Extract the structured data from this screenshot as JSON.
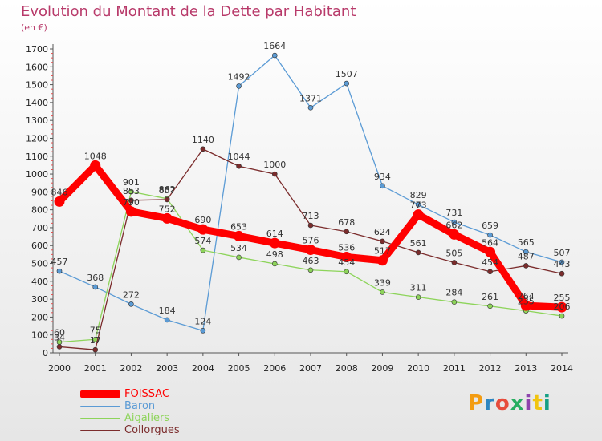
{
  "header": {
    "title": "Evolution du Montant de la Dette par Habitant",
    "unit": "(en €)"
  },
  "logo": {
    "text": "Proxiti",
    "colors": [
      "#f39c12",
      "#2e86c1",
      "#e74c3c",
      "#27ae60",
      "#8e44ad",
      "#f1c40f",
      "#16a085"
    ]
  },
  "chart_data": {
    "type": "line",
    "x": [
      "2000",
      "2001",
      "2002",
      "2003",
      "2004",
      "2005",
      "2006",
      "2007",
      "2008",
      "2009",
      "2010",
      "2011",
      "2012",
      "2013",
      "2014"
    ],
    "ylim": [
      0,
      1700
    ],
    "yticks": [
      0,
      100,
      200,
      300,
      400,
      500,
      600,
      700,
      800,
      900,
      1000,
      1100,
      1200,
      1300,
      1400,
      1500,
      1600,
      1700
    ],
    "grid": false,
    "legend": "bottom-left",
    "series": [
      {
        "name": "Baron",
        "color": "#5b9bd5",
        "values": [
          457,
          368,
          272,
          184,
          124,
          1492,
          1664,
          1371,
          1507,
          934,
          829,
          731,
          659,
          565,
          507
        ]
      },
      {
        "name": "Aigaliers",
        "color": "#8dd45a",
        "values": [
          60,
          75,
          901,
          862,
          574,
          534,
          498,
          463,
          454,
          339,
          311,
          284,
          261,
          235,
          206
        ]
      },
      {
        "name": "Collorgues",
        "color": "#7b2c2c",
        "values": [
          34,
          17,
          853,
          857,
          1140,
          1044,
          1000,
          713,
          678,
          624,
          561,
          505,
          454,
          487,
          443
        ]
      },
      {
        "name": "FOISSAC",
        "color": "#ff0000",
        "values": [
          846,
          1048,
          790,
          752,
          690,
          653,
          614,
          576,
          536,
          517,
          773,
          662,
          564,
          264,
          255
        ]
      }
    ]
  }
}
